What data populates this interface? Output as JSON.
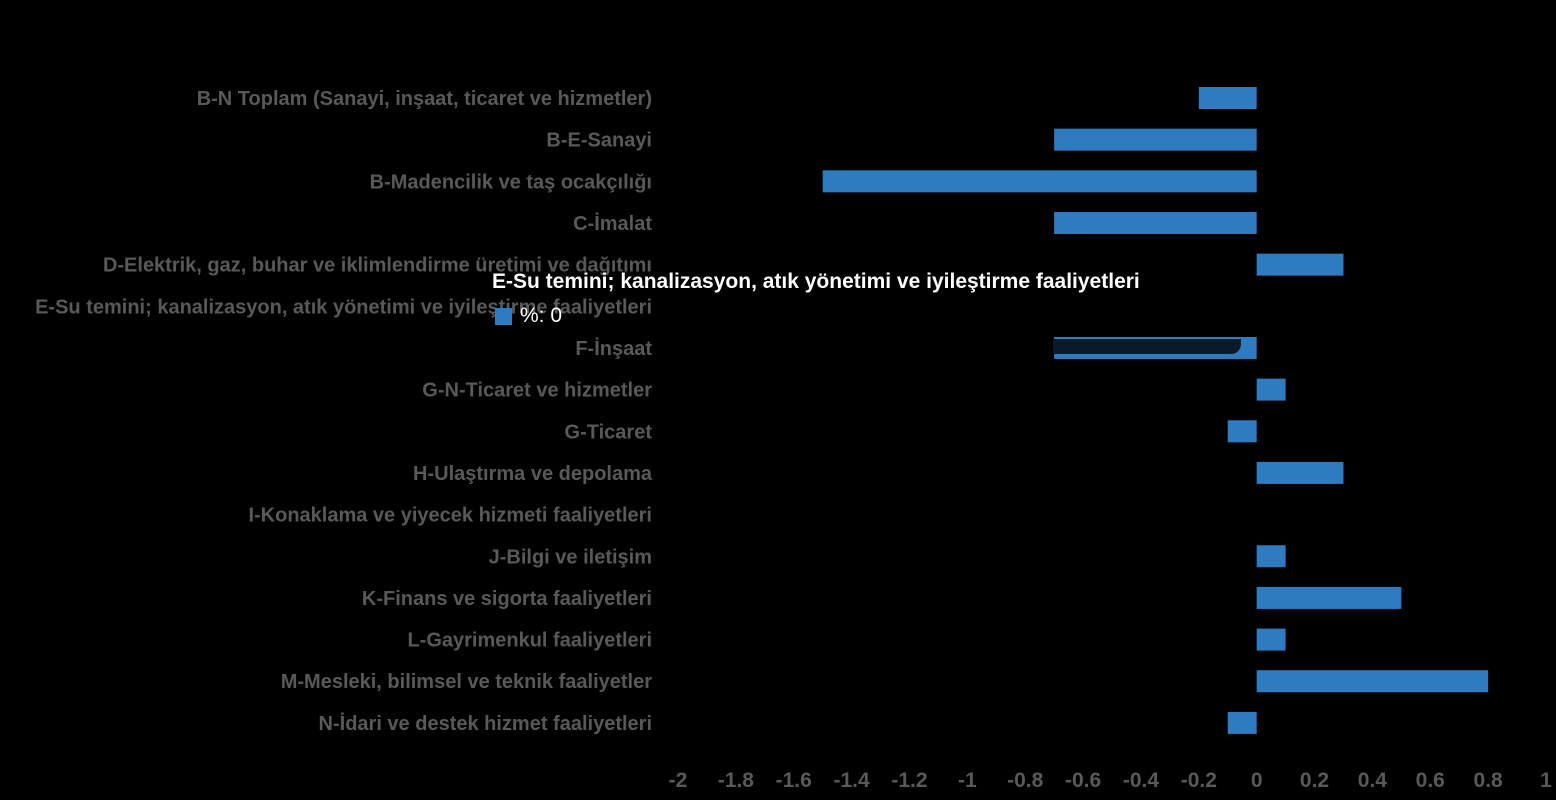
{
  "chart_data": {
    "type": "bar",
    "orientation": "horizontal",
    "categories": [
      "B-N Toplam (Sanayi, inşaat, ticaret ve hizmetler)",
      "B-E-Sanayi",
      "B-Madencilik ve taş ocakçılığı",
      "C-İmalat",
      "D-Elektrik, gaz, buhar ve iklimlendirme üretimi ve dağıtımı",
      "E-Su temini; kanalizasyon, atık yönetimi ve iyileştirme faaliyetleri",
      "F-İnşaat",
      "G-N-Ticaret ve hizmetler",
      "G-Ticaret",
      "H-Ulaştırma ve depolama",
      "I-Konaklama ve yiyecek hizmeti faaliyetleri",
      "J-Bilgi ve iletişim",
      "K-Finans ve sigorta faaliyetleri",
      "L-Gayrimenkul faaliyetleri",
      "M-Mesleki, bilimsel ve teknik faaliyetler",
      "N-İdari ve destek hizmet faaliyetleri"
    ],
    "series": [
      {
        "name": "%",
        "values": [
          -0.2,
          -0.7,
          -1.5,
          -0.7,
          0.3,
          0,
          -0.7,
          0.1,
          -0.1,
          0.3,
          0,
          0.1,
          0.5,
          0.1,
          0.8,
          -0.1
        ]
      }
    ],
    "xlim": [
      -2,
      1
    ],
    "xticks": [
      -2,
      -1.8,
      -1.6,
      -1.4,
      -1.2,
      -1,
      -0.8,
      -0.6,
      -0.4,
      -0.2,
      0,
      0.2,
      0.4,
      0.6,
      0.8,
      1
    ],
    "xtick_labels": [
      "-2",
      "-1.8",
      "-1.6",
      "-1.4",
      "-1.2",
      "-1",
      "-0.8",
      "-0.6",
      "-0.4",
      "-0.2",
      "0",
      "0.2",
      "0.4",
      "0.6",
      "0.8",
      "1"
    ],
    "grid": false,
    "colors": {
      "bar": "#2e7bbf",
      "labels": "#595959",
      "background": "#000000"
    }
  },
  "tooltip": {
    "title": "E-Su temini; kanalizasyon, atık yönetimi ve iyileştirme faaliyetleri",
    "value_text": "%: 0",
    "swatch_color": "#2e7bbf"
  }
}
